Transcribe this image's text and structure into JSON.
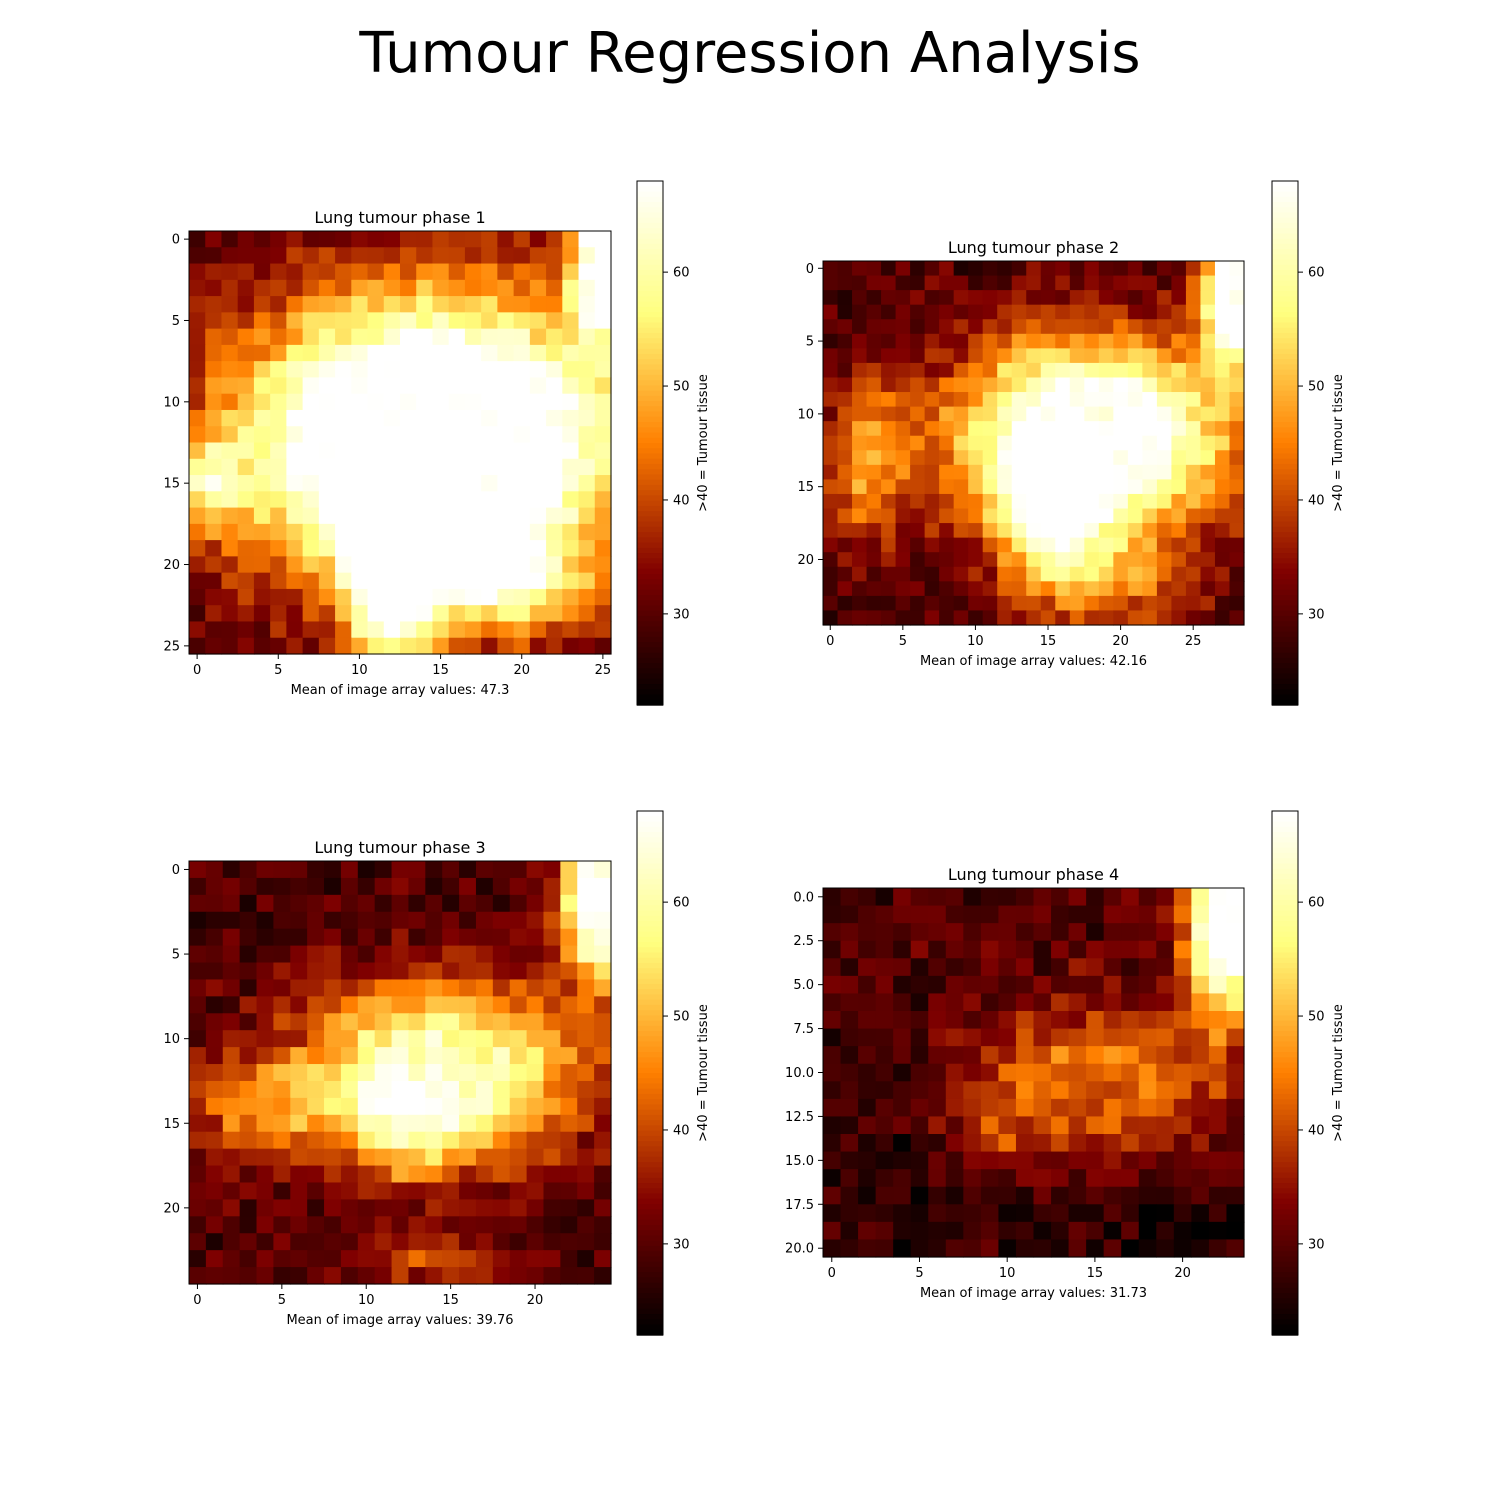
{
  "figure": {
    "title": "Tumour Regression Analysis"
  },
  "chart_data": [
    {
      "type": "heatmap",
      "title": "Lung tumour phase 1",
      "xlabel": "Mean of image array values: 47.3",
      "colorbar_label": ">40 = Tumour tissue",
      "colormap": "afmhot",
      "vmin": 22,
      "vmax": 68,
      "colorbar_ticks": [
        30,
        40,
        50,
        60
      ],
      "ncols": 26,
      "nrows": 26,
      "xticks": [
        0,
        5,
        10,
        15,
        20,
        25
      ],
      "yticks": [
        0,
        5,
        10,
        15,
        20,
        25
      ],
      "mean": 47.3,
      "blobs": [
        {
          "cx": 14.5,
          "cy": 12.5,
          "sx": 8.0,
          "sy": 6.0,
          "amp": 42,
          "flat": 0.75
        },
        {
          "cx": 12.0,
          "cy": 21.0,
          "sx": 1.8,
          "sy": 3.5,
          "amp": 36,
          "flat": 0.4
        },
        {
          "cx": 19.0,
          "cy": 21.0,
          "sx": 3.2,
          "sy": 2.0,
          "amp": 20,
          "flat": 0.3
        },
        {
          "cx": 1.0,
          "cy": 15.0,
          "sx": 1.4,
          "sy": 1.8,
          "amp": 20,
          "flat": 0.2
        },
        {
          "cx": 25.5,
          "cy": 1.0,
          "sx": 1.6,
          "sy": 3.5,
          "amp": 40,
          "flat": 0.5
        }
      ]
    },
    {
      "type": "heatmap",
      "title": "Lung tumour phase 2",
      "xlabel": "Mean of image array values: 42.16",
      "colorbar_label": ">40 = Tumour tissue",
      "colormap": "afmhot",
      "vmin": 22,
      "vmax": 68,
      "colorbar_ticks": [
        30,
        40,
        50,
        60
      ],
      "ncols": 29,
      "nrows": 25,
      "xticks": [
        0,
        5,
        10,
        15,
        20,
        25
      ],
      "yticks": [
        0,
        5,
        10,
        15,
        20
      ],
      "mean": 42.16,
      "blobs": [
        {
          "cx": 18.0,
          "cy": 11.5,
          "sx": 6.5,
          "sy": 4.5,
          "amp": 38,
          "flat": 0.55
        },
        {
          "cx": 15.5,
          "cy": 17.0,
          "sx": 2.5,
          "sy": 3.0,
          "amp": 24,
          "flat": 0.3
        },
        {
          "cx": 2.5,
          "cy": 13.5,
          "sx": 2.0,
          "sy": 4.0,
          "amp": 16,
          "flat": 0.2
        },
        {
          "cx": 19.0,
          "cy": 21.5,
          "sx": 4.5,
          "sy": 2.0,
          "amp": 14,
          "flat": 0.2
        },
        {
          "cx": 28.0,
          "cy": 2.0,
          "sx": 1.6,
          "sy": 3.2,
          "amp": 40,
          "flat": 0.5
        }
      ]
    },
    {
      "type": "heatmap",
      "title": "Lung tumour phase 3",
      "xlabel": "Mean of image array values: 39.76",
      "colorbar_label": ">40 = Tumour tissue",
      "colormap": "afmhot",
      "vmin": 22,
      "vmax": 68,
      "colorbar_ticks": [
        30,
        40,
        50,
        60
      ],
      "ncols": 25,
      "nrows": 25,
      "xticks": [
        0,
        5,
        10,
        15,
        20
      ],
      "yticks": [
        0,
        5,
        10,
        15,
        20
      ],
      "mean": 39.76,
      "blobs": [
        {
          "cx": 14.5,
          "cy": 12.0,
          "sx": 5.5,
          "sy": 3.5,
          "amp": 30,
          "flat": 0.5
        },
        {
          "cx": 12.5,
          "cy": 15.0,
          "sx": 2.5,
          "sy": 2.5,
          "amp": 12,
          "flat": 0.3
        },
        {
          "cx": 3.5,
          "cy": 14.0,
          "sx": 3.0,
          "sy": 2.0,
          "amp": 14,
          "flat": 0.2
        },
        {
          "cx": 14.0,
          "cy": 23.0,
          "sx": 3.0,
          "sy": 1.2,
          "amp": 10,
          "flat": 0.2
        },
        {
          "cx": 24.0,
          "cy": 2.0,
          "sx": 1.6,
          "sy": 3.0,
          "amp": 40,
          "flat": 0.5
        }
      ]
    },
    {
      "type": "heatmap",
      "title": "Lung tumour phase 4",
      "xlabel": "Mean of image array values: 31.73",
      "colorbar_label": ">40 = Tumour tissue",
      "colormap": "afmhot",
      "vmin": 22,
      "vmax": 68,
      "colorbar_ticks": [
        30,
        40,
        50,
        60
      ],
      "ncols": 24,
      "nrows": 21,
      "xticks": [
        0,
        5,
        10,
        15,
        20
      ],
      "yticks": [
        0.0,
        2.5,
        5.0,
        7.5,
        10.0,
        12.5,
        15.0,
        17.5,
        20.0
      ],
      "ytick_labels": [
        "0.0",
        "2.5",
        "5.0",
        "7.5",
        "10.0",
        "12.5",
        "15.0",
        "17.5",
        "20.0"
      ],
      "mean": 31.73,
      "blobs": [
        {
          "cx": 15.0,
          "cy": 10.5,
          "sx": 5.0,
          "sy": 3.0,
          "amp": 14,
          "flat": 0.4
        },
        {
          "cx": 9.0,
          "cy": 13.5,
          "sx": 1.5,
          "sy": 1.5,
          "amp": 8,
          "flat": 0.2
        },
        {
          "cx": 22.5,
          "cy": 1.5,
          "sx": 1.5,
          "sy": 3.5,
          "amp": 40,
          "flat": 0.5
        },
        {
          "cx": 3.0,
          "cy": 11.0,
          "sx": 3.0,
          "sy": 3.0,
          "amp": -3,
          "flat": 0.1
        },
        {
          "cx": 8.0,
          "cy": 18.0,
          "sx": 5.0,
          "sy": 2.0,
          "amp": -4,
          "flat": 0.1
        },
        {
          "cx": 20.0,
          "cy": 19.0,
          "sx": 3.0,
          "sy": 1.5,
          "amp": -5,
          "flat": 0.1
        }
      ]
    }
  ]
}
